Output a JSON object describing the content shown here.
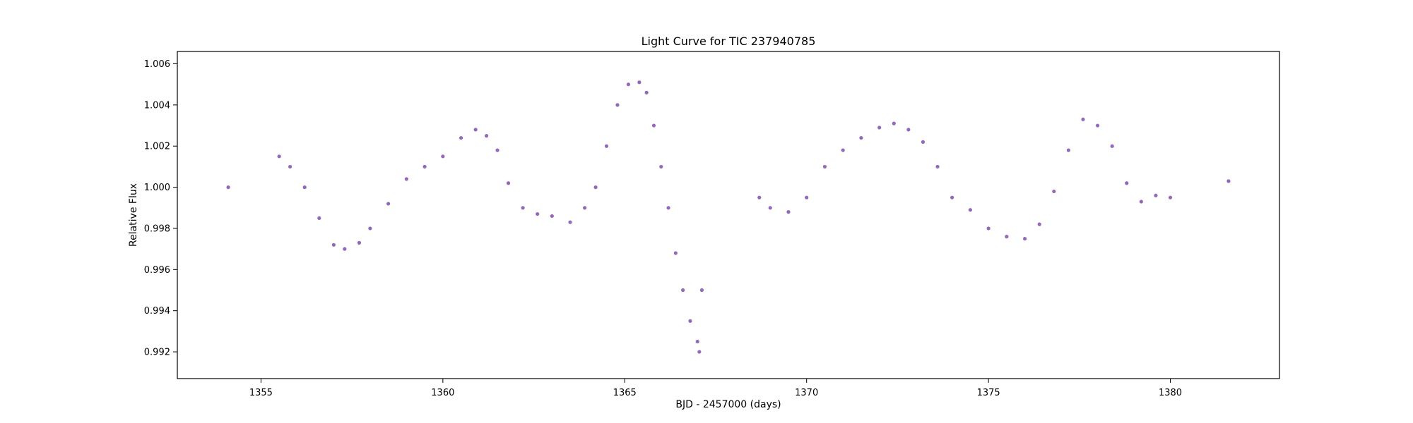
{
  "chart_data": {
    "type": "scatter",
    "title": "Light Curve for TIC 237940785",
    "xlabel": "BJD - 2457000 (days)",
    "ylabel": "Relative Flux",
    "xlim": [
      1352.7,
      1383.0
    ],
    "ylim": [
      0.9907,
      1.0066
    ],
    "xticks": [
      1355,
      1360,
      1365,
      1370,
      1375,
      1380
    ],
    "xtick_labels": [
      "1355",
      "1360",
      "1365",
      "1370",
      "1375",
      "1380"
    ],
    "yticks": [
      0.992,
      0.994,
      0.996,
      0.998,
      1.0,
      1.002,
      1.004,
      1.006
    ],
    "ytick_labels": [
      "0.992",
      "0.994",
      "0.996",
      "0.998",
      "1.000",
      "1.002",
      "1.004",
      "1.006"
    ],
    "grid": false,
    "marker_color": "#9467bd",
    "series": [
      {
        "name": "",
        "points": [
          [
            1354.1,
            1.0
          ],
          [
            1355.5,
            1.0015
          ],
          [
            1355.8,
            1.001
          ],
          [
            1356.2,
            1.0
          ],
          [
            1356.6,
            0.9985
          ],
          [
            1357.0,
            0.9972
          ],
          [
            1357.3,
            0.997
          ],
          [
            1357.7,
            0.9973
          ],
          [
            1358.0,
            0.998
          ],
          [
            1358.5,
            0.9992
          ],
          [
            1359.0,
            1.0004
          ],
          [
            1359.5,
            1.001
          ],
          [
            1360.0,
            1.0015
          ],
          [
            1360.5,
            1.0024
          ],
          [
            1360.9,
            1.0028
          ],
          [
            1361.2,
            1.0025
          ],
          [
            1361.5,
            1.0018
          ],
          [
            1361.8,
            1.0002
          ],
          [
            1362.2,
            0.999
          ],
          [
            1362.6,
            0.9987
          ],
          [
            1363.0,
            0.9986
          ],
          [
            1363.5,
            0.9983
          ],
          [
            1363.9,
            0.999
          ],
          [
            1364.2,
            1.0
          ],
          [
            1364.5,
            1.002
          ],
          [
            1364.8,
            1.004
          ],
          [
            1365.1,
            1.005
          ],
          [
            1365.4,
            1.0051
          ],
          [
            1365.6,
            1.0046
          ],
          [
            1365.8,
            1.003
          ],
          [
            1366.0,
            1.001
          ],
          [
            1366.2,
            0.999
          ],
          [
            1366.4,
            0.9968
          ],
          [
            1366.6,
            0.995
          ],
          [
            1366.8,
            0.9935
          ],
          [
            1367.0,
            0.9925
          ],
          [
            1367.05,
            0.992
          ],
          [
            1367.12,
            0.995
          ],
          [
            1368.7,
            0.9995
          ],
          [
            1369.0,
            0.999
          ],
          [
            1369.5,
            0.9988
          ],
          [
            1370.0,
            0.9995
          ],
          [
            1370.5,
            1.001
          ],
          [
            1371.0,
            1.0018
          ],
          [
            1371.5,
            1.0024
          ],
          [
            1372.0,
            1.0029
          ],
          [
            1372.4,
            1.0031
          ],
          [
            1372.8,
            1.0028
          ],
          [
            1373.2,
            1.0022
          ],
          [
            1373.6,
            1.001
          ],
          [
            1374.0,
            0.9995
          ],
          [
            1374.5,
            0.9989
          ],
          [
            1375.0,
            0.998
          ],
          [
            1375.5,
            0.9976
          ],
          [
            1376.0,
            0.9975
          ],
          [
            1376.4,
            0.9982
          ],
          [
            1376.8,
            0.9998
          ],
          [
            1377.2,
            1.0018
          ],
          [
            1377.6,
            1.0033
          ],
          [
            1378.0,
            1.003
          ],
          [
            1378.4,
            1.002
          ],
          [
            1378.8,
            1.0002
          ],
          [
            1379.2,
            0.9993
          ],
          [
            1379.6,
            0.9996
          ],
          [
            1380.0,
            0.9995
          ],
          [
            1381.6,
            1.0003
          ]
        ]
      }
    ]
  }
}
